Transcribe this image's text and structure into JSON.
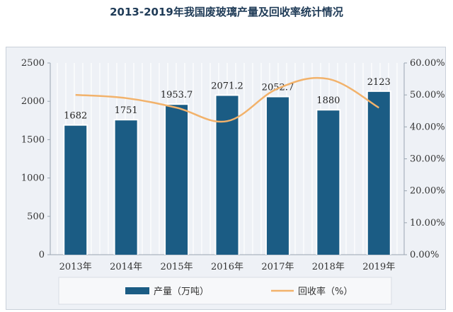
{
  "page": {
    "title": "2013-2019年我国废玻璃产量及回收率统计情况"
  },
  "chart_data": {
    "type": "bar",
    "title": "2013-2019年我国废玻璃产量及回收率统计情况",
    "categories": [
      "2013年",
      "2014年",
      "2015年",
      "2016年",
      "2017年",
      "2018年",
      "2019年"
    ],
    "series": [
      {
        "name": "产量（万吨）",
        "type": "bar",
        "axis": "left",
        "values": [
          1682,
          1751,
          1953.7,
          2071.2,
          2052.7,
          1880,
          2123
        ],
        "labels": [
          "1682",
          "1751",
          "1953.7",
          "2071.2",
          "2052.7",
          "1880",
          "2123"
        ]
      },
      {
        "name": "回收率（%）",
        "type": "line",
        "axis": "right",
        "smooth": true,
        "values": [
          50.0,
          49.0,
          46.0,
          41.8,
          52.0,
          55.0,
          46.0
        ]
      }
    ],
    "y_left": {
      "min": 0,
      "max": 2500,
      "ticks": [
        "0",
        "500",
        "1000",
        "1500",
        "2000",
        "2500"
      ]
    },
    "y_right": {
      "min": 0,
      "max": 60,
      "ticks": [
        "0.00%",
        "10.00%",
        "20.00%",
        "30.00%",
        "40.00%",
        "50.00%",
        "60.00%"
      ]
    },
    "grid": "vertical",
    "legend_position": "bottom",
    "colors": {
      "bar": "#1b5c84",
      "line": "#f2b26b",
      "plot_bg": "#eef1f6",
      "grid": "#ffffff"
    }
  }
}
